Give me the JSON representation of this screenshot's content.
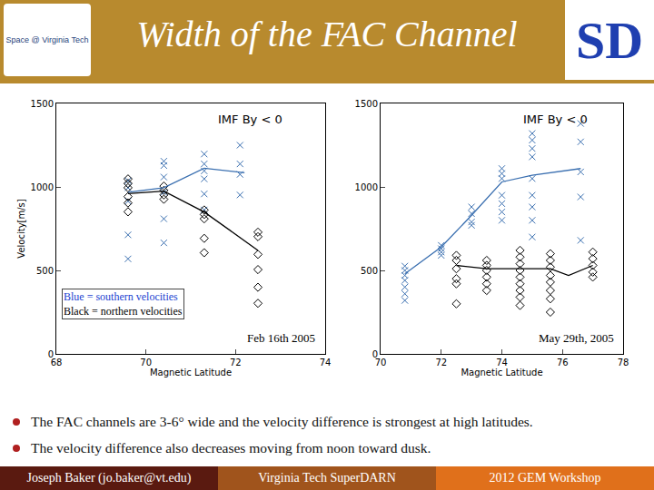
{
  "slide": {
    "title": "Width of the FAC Channel",
    "logo_left": "Space @ Virginia Tech",
    "logo_right": "SD",
    "bullets": [
      "The FAC channels are 3-6° wide and the velocity difference is strongest at high latitudes.",
      "The velocity difference also decreases moving from noon toward dusk."
    ],
    "footer": [
      "Joseph Baker (jo.baker@vt.edu)",
      "Virginia Tech SuperDARN",
      "2012 GEM Workshop"
    ]
  },
  "chart_data": [
    {
      "type": "scatter",
      "title": "IMF By < 0",
      "xlabel": "Magnetic Latitude",
      "ylabel": "Velocity[m/s]",
      "xlim": [
        68,
        74
      ],
      "xticks": [
        68,
        70,
        72,
        74
      ],
      "ylim": [
        0,
        1500
      ],
      "yticks": [
        0,
        500,
        1000,
        1500
      ],
      "grid": false,
      "annotations": [
        {
          "text": "Blue = southern velocities",
          "color": "#1a3fd0"
        },
        {
          "text": "Black = northern velocities",
          "color": "#000000"
        }
      ],
      "date": "Feb 16th 2005",
      "series": [
        {
          "type": "scatter",
          "marker": "x",
          "color": "#3a6fb0",
          "x": [
            69.6,
            69.6,
            69.6,
            69.6,
            69.6,
            70.4,
            70.4,
            70.4,
            70.4,
            70.4,
            70.4,
            71.3,
            71.3,
            71.3,
            71.3,
            71.3,
            71.3,
            72.1,
            72.1,
            72.1,
            72.1
          ],
          "values": [
            1037,
            995,
            915,
            713,
            569,
            1154,
            1128,
            1059,
            968,
            809,
            665,
            1197,
            1138,
            1096,
            1048,
            958,
            862,
            1250,
            1138,
            1075,
            952
          ]
        },
        {
          "type": "scatter",
          "marker": "diamond",
          "color": "#000000",
          "x": [
            69.6,
            69.6,
            69.6,
            69.6,
            69.6,
            69.6,
            70.4,
            70.4,
            70.4,
            70.4,
            71.3,
            71.3,
            71.3,
            71.3,
            71.3,
            72.5,
            72.5,
            72.5,
            72.5,
            72.5,
            72.5
          ],
          "values": [
            1048,
            1021,
            995,
            942,
            904,
            851,
            1005,
            979,
            952,
            926,
            862,
            835,
            809,
            692,
            606,
            729,
            702,
            596,
            505,
            399,
            303
          ]
        },
        {
          "type": "line",
          "color": "#3a6fb0",
          "x": [
            69.6,
            70.4,
            71.3,
            72.2
          ],
          "values": [
            968,
            995,
            1112,
            1085
          ]
        },
        {
          "type": "line",
          "color": "#000000",
          "x": [
            69.6,
            70.4,
            71.3,
            72.5
          ],
          "values": [
            960,
            975,
            850,
            620
          ]
        }
      ]
    },
    {
      "type": "scatter",
      "title": "IMF By < 0",
      "xlabel": "Magnetic Latitude",
      "xlim": [
        70,
        78
      ],
      "xticks": [
        70,
        72,
        74,
        76,
        78
      ],
      "ylim": [
        0,
        1500
      ],
      "yticks": [
        0,
        500,
        1000,
        1500
      ],
      "grid": false,
      "date": "May 29th, 2005",
      "series": [
        {
          "type": "scatter",
          "marker": "x",
          "color": "#3a6fb0",
          "x": [
            70.8,
            70.8,
            70.8,
            70.8,
            70.8,
            70.8,
            70.8,
            72,
            72,
            72,
            72,
            73,
            73,
            73,
            73,
            74,
            74,
            74,
            74,
            74,
            74,
            74,
            75,
            75,
            75,
            75,
            75,
            75,
            75,
            75,
            75,
            76.6,
            76.6,
            76.6,
            76.6,
            76.6
          ],
          "values": [
            526,
            500,
            470,
            440,
            400,
            360,
            320,
            650,
            630,
            610,
            590,
            880,
            840,
            790,
            770,
            1110,
            1080,
            1050,
            950,
            900,
            850,
            800,
            1320,
            1280,
            1230,
            1180,
            1050,
            950,
            880,
            800,
            700,
            1380,
            1270,
            1090,
            940,
            680
          ]
        },
        {
          "type": "scatter",
          "marker": "diamond",
          "color": "#000000",
          "x": [
            72.5,
            72.5,
            72.5,
            72.5,
            72.5,
            72.5,
            73.5,
            73.5,
            73.5,
            73.5,
            73.5,
            73.5,
            74.6,
            74.6,
            74.6,
            74.6,
            74.6,
            74.6,
            74.6,
            74.6,
            74.6,
            75.6,
            75.6,
            75.6,
            75.6,
            75.6,
            75.6,
            75.6,
            75.6,
            77,
            77,
            77,
            77,
            77
          ],
          "values": [
            590,
            560,
            510,
            450,
            420,
            300,
            560,
            530,
            500,
            460,
            420,
            380,
            620,
            580,
            540,
            500,
            460,
            420,
            380,
            340,
            290,
            600,
            560,
            520,
            470,
            430,
            380,
            330,
            250,
            610,
            570,
            530,
            490,
            460
          ]
        },
        {
          "type": "line",
          "color": "#3a6fb0",
          "x": [
            70.8,
            72,
            73,
            74,
            75,
            76.6
          ],
          "values": [
            480,
            640,
            830,
            1030,
            1070,
            1110
          ]
        },
        {
          "type": "line",
          "color": "#000000",
          "x": [
            72.5,
            73.5,
            74.6,
            75.6,
            76.2,
            77
          ],
          "values": [
            530,
            510,
            510,
            510,
            470,
            530
          ]
        }
      ]
    }
  ]
}
